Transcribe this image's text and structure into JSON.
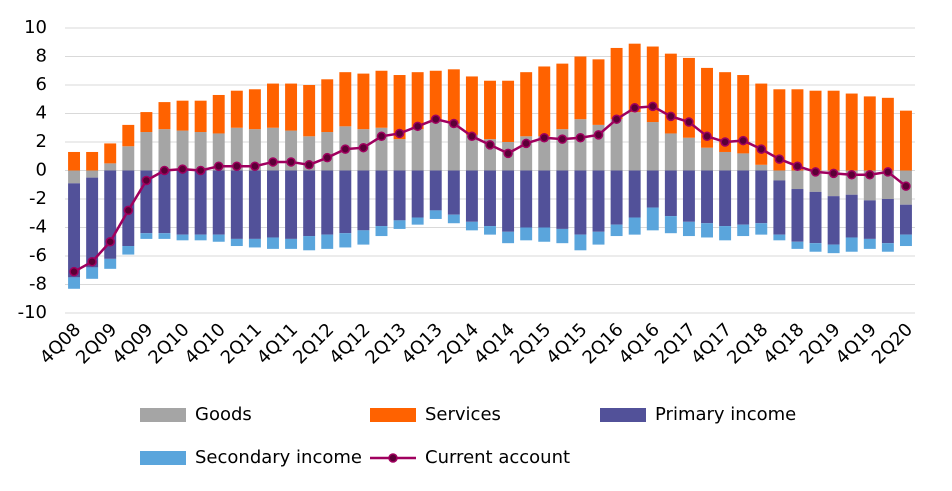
{
  "chart_data": {
    "type": "bar",
    "stacked": true,
    "categories": [
      "4Q08",
      null,
      "2Q09",
      null,
      "4Q09",
      null,
      "2Q10",
      null,
      "4Q10",
      null,
      "2Q11",
      null,
      "4Q11",
      null,
      "2Q12",
      null,
      "4Q12",
      null,
      "2Q13",
      null,
      "4Q13",
      null,
      "2Q14",
      null,
      "4Q14",
      null,
      "2Q15",
      null,
      "4Q15",
      null,
      "2Q16",
      null,
      "4Q16",
      null,
      "2Q17",
      null,
      "4Q17",
      null,
      "2Q18",
      null,
      "4Q18",
      null,
      "2Q19",
      null,
      "4Q19",
      null,
      "2Q20"
    ],
    "series": [
      {
        "name": "Goods",
        "color": "#a5a5a5",
        "values": [
          -0.9,
          -0.5,
          0.5,
          1.7,
          2.7,
          2.9,
          2.8,
          2.7,
          2.6,
          3.0,
          2.9,
          3.0,
          2.8,
          2.4,
          2.7,
          3.1,
          2.9,
          3.0,
          2.2,
          2.9,
          3.5,
          3.3,
          2.5,
          2.2,
          2.0,
          2.4,
          2.4,
          2.9,
          3.6,
          3.2,
          3.6,
          4.1,
          3.4,
          2.6,
          2.3,
          1.6,
          1.3,
          1.2,
          0.4,
          -0.7,
          -1.3,
          -1.5,
          -1.8,
          -1.7,
          -2.1,
          -2.0,
          -2.4
        ]
      },
      {
        "name": "Services",
        "color": "#ff6200",
        "values": [
          1.3,
          1.3,
          1.4,
          1.5,
          1.4,
          1.9,
          2.1,
          2.2,
          2.7,
          2.6,
          2.8,
          3.1,
          3.3,
          3.6,
          3.7,
          3.8,
          3.9,
          4.0,
          4.5,
          4.0,
          3.5,
          3.8,
          4.1,
          4.1,
          4.3,
          4.5,
          4.9,
          4.6,
          4.4,
          4.6,
          5.0,
          4.8,
          5.3,
          5.6,
          5.6,
          5.6,
          5.6,
          5.5,
          5.7,
          5.7,
          5.7,
          5.6,
          5.6,
          5.4,
          5.2,
          5.1,
          4.2
        ]
      },
      {
        "name": "Primary income",
        "color": "#525199",
        "values": [
          -6.6,
          -6.3,
          -6.2,
          -5.3,
          -4.4,
          -4.4,
          -4.5,
          -4.5,
          -4.5,
          -4.8,
          -4.8,
          -4.7,
          -4.8,
          -4.6,
          -4.5,
          -4.4,
          -4.2,
          -3.9,
          -3.5,
          -3.3,
          -2.8,
          -3.1,
          -3.6,
          -3.9,
          -4.3,
          -4.0,
          -4.0,
          -4.1,
          -4.5,
          -4.3,
          -3.8,
          -3.3,
          -2.6,
          -3.2,
          -3.6,
          -3.7,
          -3.9,
          -3.8,
          -3.7,
          -3.8,
          -3.7,
          -3.6,
          -3.4,
          -3.0,
          -2.7,
          -3.1,
          -2.1
        ]
      },
      {
        "name": "Secondary income",
        "color": "#5aa5dc",
        "values": [
          -0.8,
          -0.8,
          -0.7,
          -0.6,
          -0.4,
          -0.4,
          -0.4,
          -0.4,
          -0.5,
          -0.5,
          -0.6,
          -0.8,
          -0.7,
          -1.0,
          -1.0,
          -1.0,
          -1.0,
          -0.7,
          -0.6,
          -0.5,
          -0.6,
          -0.6,
          -0.6,
          -0.6,
          -0.8,
          -0.9,
          -1.0,
          -1.0,
          -1.1,
          -0.9,
          -0.8,
          -1.2,
          -1.6,
          -1.2,
          -1.0,
          -1.0,
          -1.0,
          -0.8,
          -0.8,
          -0.4,
          -0.5,
          -0.6,
          -0.6,
          -1.0,
          -0.7,
          -0.6,
          -0.8
        ]
      },
      {
        "name": "Current account",
        "type": "line",
        "color": "#a0005f",
        "values": [
          -7.1,
          -6.4,
          -5.0,
          -2.8,
          -0.7,
          0.0,
          0.1,
          0.0,
          0.3,
          0.3,
          0.3,
          0.6,
          0.6,
          0.4,
          0.9,
          1.5,
          1.6,
          2.4,
          2.6,
          3.1,
          3.6,
          3.3,
          2.4,
          1.8,
          1.2,
          1.9,
          2.3,
          2.2,
          2.3,
          2.5,
          3.6,
          4.4,
          4.5,
          3.8,
          3.4,
          2.4,
          2.0,
          2.1,
          1.5,
          0.8,
          0.3,
          -0.1,
          -0.2,
          -0.3,
          -0.3,
          -0.1,
          -1.1
        ]
      }
    ],
    "ylim": [
      -10,
      10
    ],
    "yticks": [
      -10,
      -8,
      -6,
      -4,
      -2,
      0,
      2,
      4,
      6,
      8,
      10
    ],
    "grid": true,
    "legend": "bottom"
  }
}
